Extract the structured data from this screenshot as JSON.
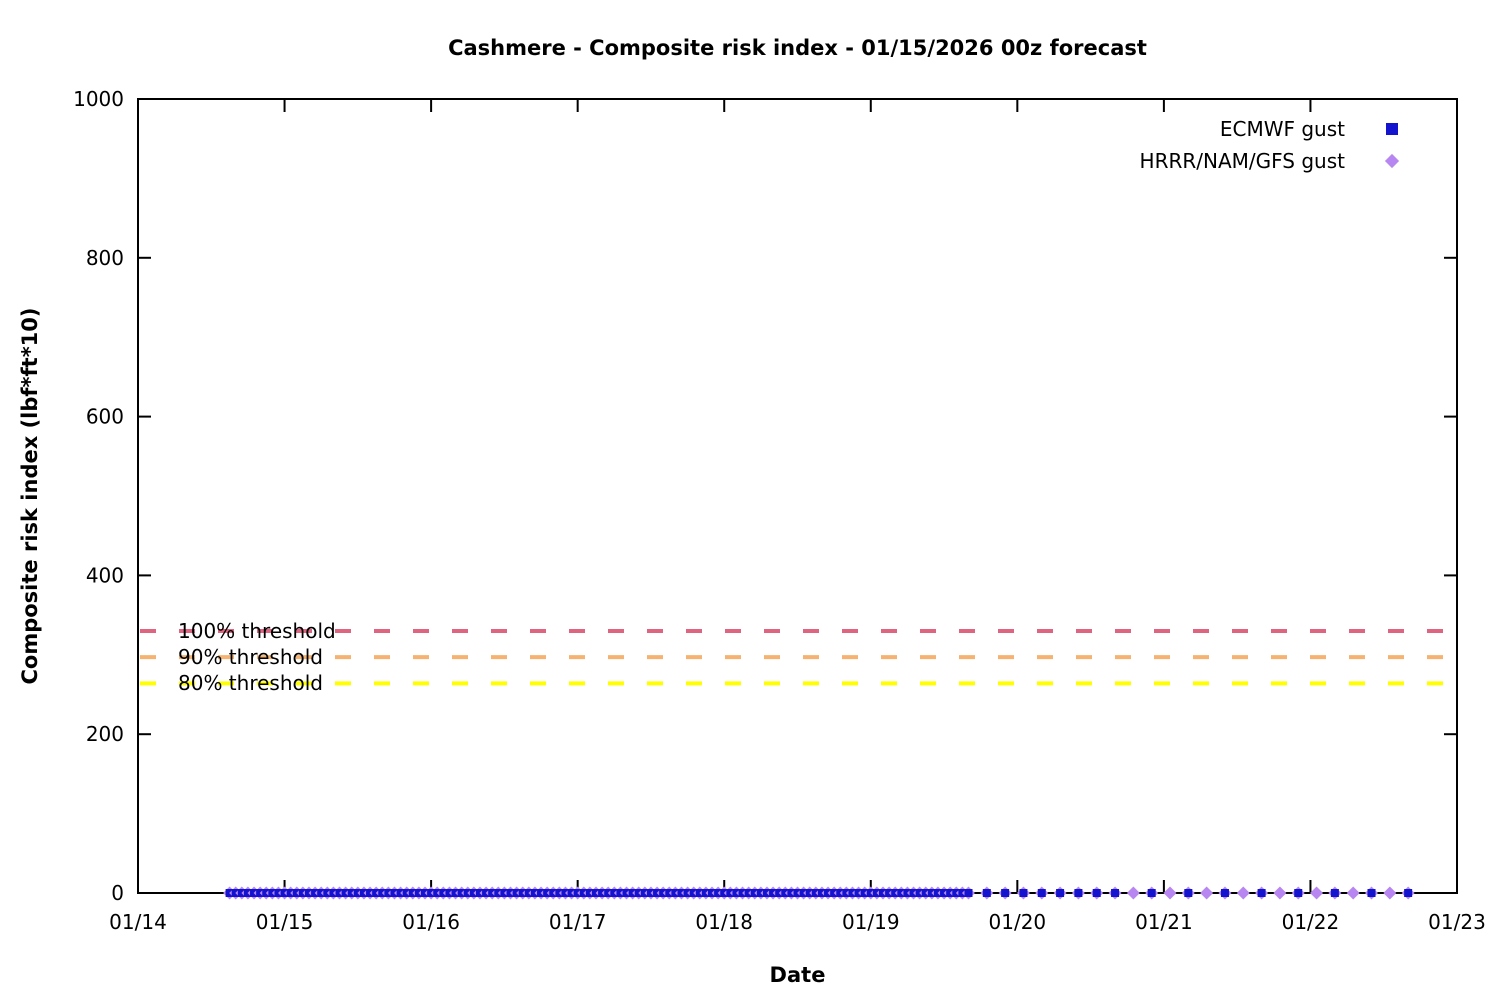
{
  "chart_data": {
    "type": "scatter",
    "title": "Cashmere - Composite risk index - 01/15/2026 00z forecast",
    "xlabel": "Date",
    "ylabel": "Composite risk index (lbf*ft*10)",
    "x_axis": {
      "tick_labels": [
        "01/14",
        "01/15",
        "01/16",
        "01/17",
        "01/18",
        "01/19",
        "01/20",
        "01/21",
        "01/22",
        "01/23"
      ],
      "span_days": 9
    },
    "y_axis": {
      "ticks": [
        0,
        200,
        400,
        600,
        800,
        1000
      ],
      "range": [
        0,
        1000
      ]
    },
    "grid": false,
    "legend_position": "top-right",
    "axis_color": "#000000",
    "background_color": "#ffffff",
    "thresholds": [
      {
        "label": "100% threshold",
        "value": 330,
        "color": "#df6480"
      },
      {
        "label": "90% threshold",
        "value": 297,
        "color": "#f5b271"
      },
      {
        "label": "80% threshold",
        "value": 264,
        "color": "#ffff00"
      }
    ],
    "series": [
      {
        "name": "ECMWF gust",
        "marker": "filled-square",
        "color": "#1414cf",
        "y_value": 0,
        "segments": [
          {
            "start_day": 0.625,
            "end_day": 5.6667,
            "interval_hours": 1
          },
          {
            "start_day": 5.7917,
            "end_day": 6.6667,
            "interval_hours": 3
          },
          {
            "start_day": 6.9167,
            "end_day": 8.6667,
            "interval_hours": 6
          }
        ]
      },
      {
        "name": "HRRR/NAM/GFS gust",
        "marker": "filled-diamond",
        "color": "#b886f0",
        "y_value": 0,
        "segments": [
          {
            "start_day": 0.625,
            "end_day": 5.6667,
            "interval_hours": 1
          },
          {
            "start_day": 5.7917,
            "end_day": 8.6667,
            "interval_hours": 3
          }
        ]
      }
    ]
  }
}
